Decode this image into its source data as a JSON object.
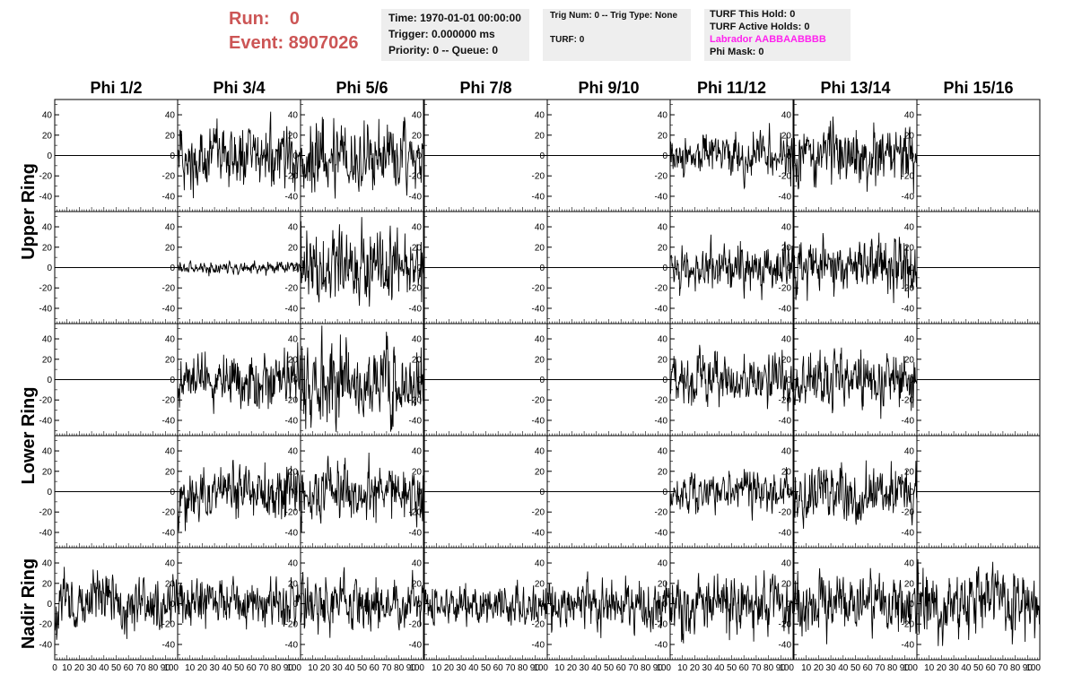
{
  "header": {
    "run_label": "Run:    0",
    "event_label": "Event: 8907026",
    "time_line": "Time: 1970-01-01 00:00:00",
    "trigger_line": "Trigger: 0.000000 ms",
    "priority_line": "Priority: 0 -- Queue: 0",
    "trig_line": "Trig Num: 0 -- Trig Type: None",
    "turf_line": "TURF: 0",
    "turf_hold_line": "TURF This Hold: 0",
    "turf_active_line": "TURF Active Holds: 0",
    "labrador_line": "Labrador AABBAABBBB",
    "phi_mask_line": "Phi Mask: 0"
  },
  "colors": {
    "header_red": "#cc5555",
    "labrador_magenta": "#ff22ee",
    "trace": "#000000",
    "info_bg": "#eeeeee"
  },
  "chart_data": {
    "type": "line",
    "column_titles": [
      "Phi 1/2",
      "Phi 3/4",
      "Phi 5/6",
      "Phi 7/8",
      "Phi 9/10",
      "Phi 11/12",
      "Phi 13/14",
      "Phi 15/16"
    ],
    "ring_labels": [
      {
        "text": "Upper Ring",
        "rows": [
          0,
          1
        ]
      },
      {
        "text": "Lower Ring",
        "rows": [
          2,
          3
        ]
      },
      {
        "text": "Nadir Ring",
        "rows": [
          4,
          4
        ]
      }
    ],
    "ylim": [
      -55,
      55
    ],
    "yticks": [
      -40,
      -20,
      0,
      20,
      40
    ],
    "xlim": [
      0,
      100
    ],
    "xtick_labels": [
      [
        "0",
        "10",
        "20",
        "30",
        "40",
        "50",
        "60",
        "70",
        "80",
        "90",
        "100"
      ],
      [
        "10",
        "20",
        "30",
        "40",
        "50",
        "60",
        "70",
        "80",
        "90",
        "100"
      ],
      [
        "10",
        "20",
        "30",
        "40",
        "50",
        "60",
        "70",
        "80",
        "90",
        "100"
      ],
      [
        "10",
        "20",
        "30",
        "40",
        "50",
        "60",
        "70",
        "80",
        "90",
        "100"
      ],
      [
        "10",
        "20",
        "30",
        "40",
        "50",
        "60",
        "70",
        "80",
        "90",
        "100"
      ],
      [
        "10",
        "20",
        "30",
        "40",
        "50",
        "60",
        "70",
        "80",
        "90",
        "100"
      ],
      [
        "10",
        "20",
        "30",
        "40",
        "50",
        "60",
        "70",
        "80",
        "90",
        "100"
      ],
      [
        "10",
        "20",
        "30",
        "40",
        "50",
        "60",
        "70",
        "80",
        "90",
        "100"
      ]
    ],
    "samples_per_trace": 260,
    "trace_amplitude": [
      [
        0,
        14,
        17,
        0,
        0,
        10,
        14,
        0
      ],
      [
        0,
        3,
        17,
        0,
        0,
        11,
        13,
        0
      ],
      [
        0,
        12,
        18,
        0,
        0,
        11,
        14,
        0
      ],
      [
        0,
        13,
        14,
        0,
        0,
        9,
        14,
        0
      ],
      [
        13,
        11,
        12,
        9,
        12,
        14,
        13,
        16
      ]
    ]
  }
}
